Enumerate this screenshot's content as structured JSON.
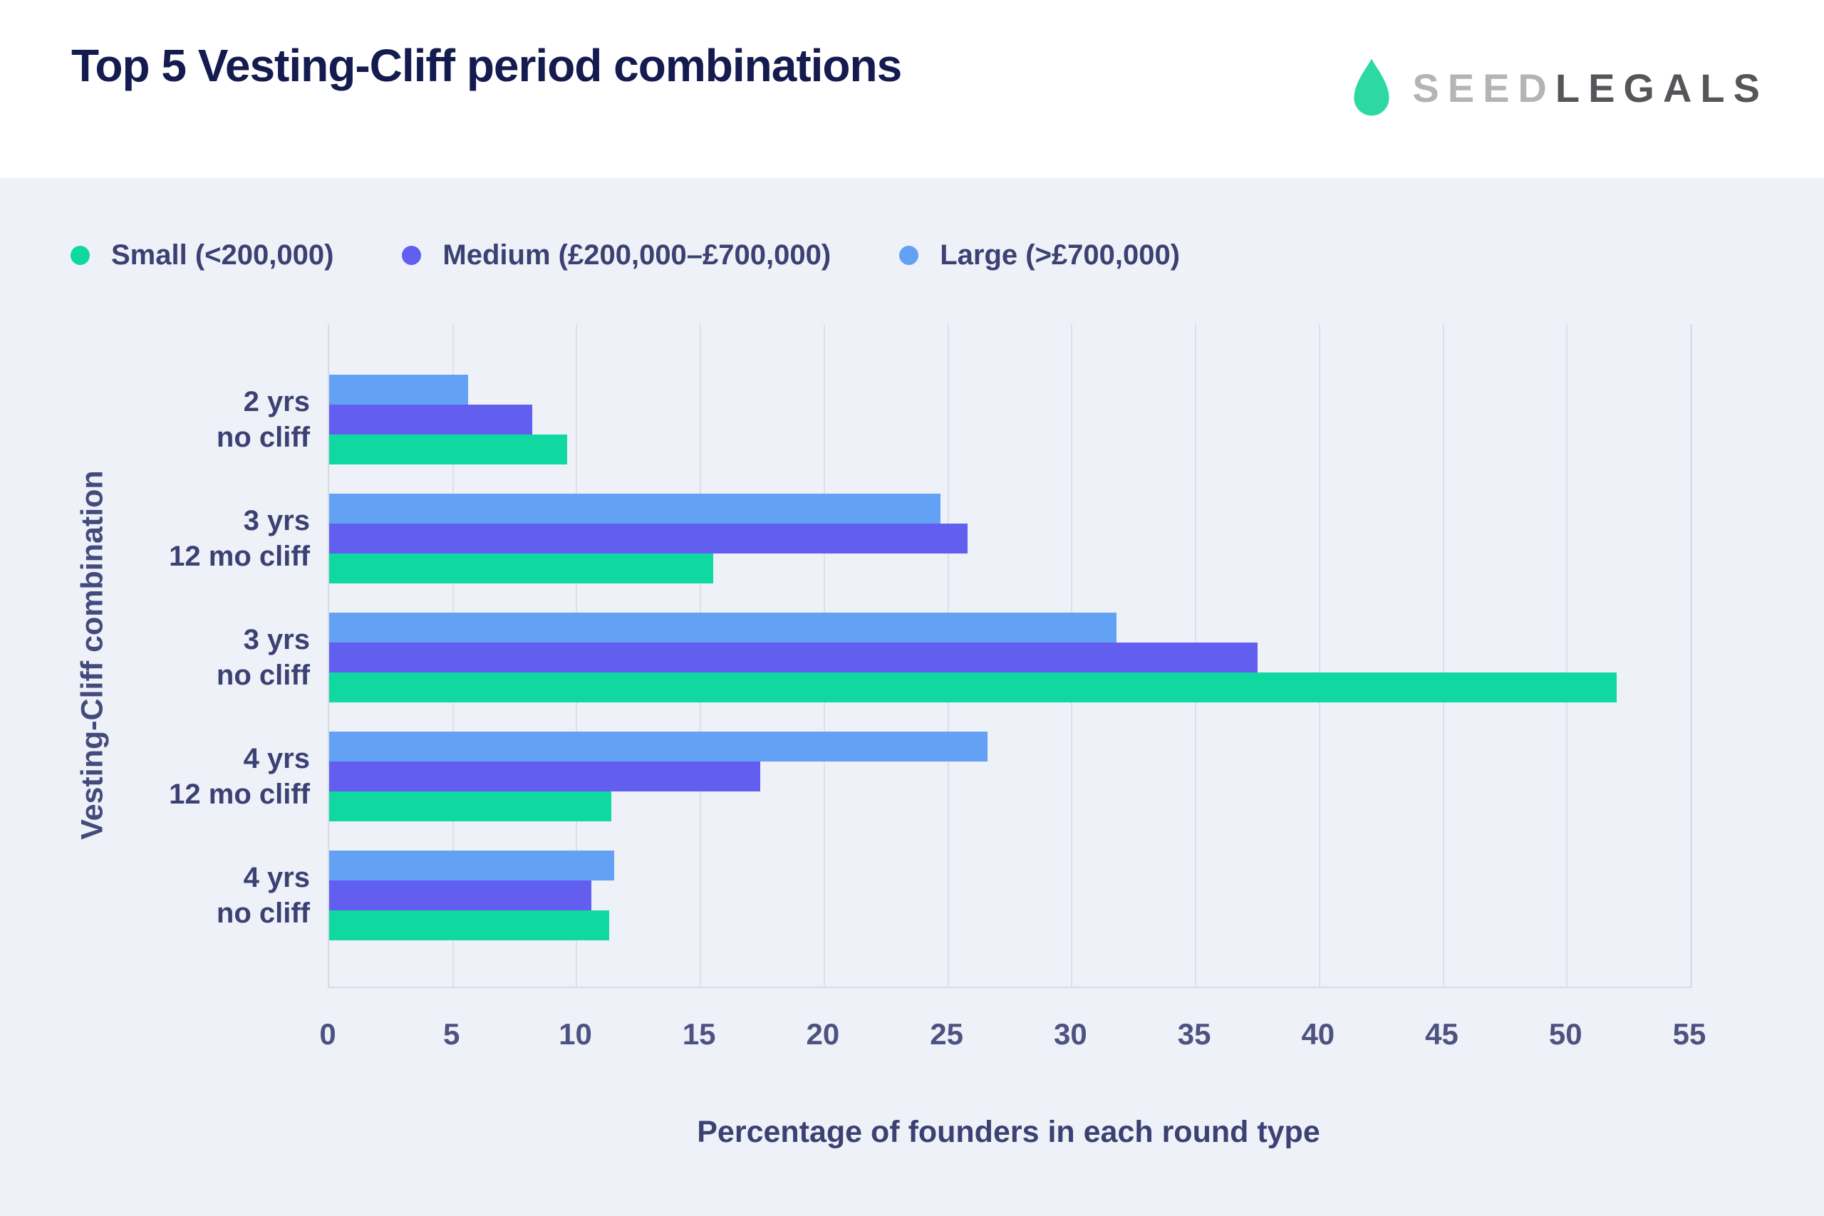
{
  "header": {
    "title": "Top 5 Vesting-Cliff period combinations",
    "logo": {
      "brand_first": "SEED",
      "brand_second": "LEGALS",
      "droplet_color": "#2dd9a2"
    }
  },
  "colors": {
    "panel_background": "#eef1f7",
    "header_background": "#ffffff",
    "title_text": "#131b4f",
    "label_text": "#3b4173",
    "tick_text": "#4d5280",
    "gridline": "#dde0e9",
    "small_green": "#0fd9a1",
    "medium_purple": "#615ef0",
    "large_blue": "#63a1f4"
  },
  "legend": [
    {
      "label": "Small (<200,000)",
      "color": "#0fd9a1"
    },
    {
      "label": "Medium (£200,000–£700,000)",
      "color": "#615ef0"
    },
    {
      "label": "Large (>£700,000)",
      "color": "#63a1f4"
    }
  ],
  "chart_data": {
    "type": "bar",
    "orientation": "horizontal",
    "title": "Top 5 Vesting-Cliff period combinations",
    "xlabel": "Percentage of founders in each round type",
    "ylabel": "Vesting-Cliff combination",
    "xlim": [
      0,
      55
    ],
    "xticks": [
      0,
      5,
      10,
      15,
      20,
      25,
      30,
      35,
      40,
      45,
      50,
      55
    ],
    "grid": true,
    "legend_position": "top-left",
    "categories": [
      [
        "2 yrs",
        "no cliff"
      ],
      [
        "3 yrs",
        "12 mo cliff"
      ],
      [
        "3 yrs",
        "no cliff"
      ],
      [
        "4 yrs",
        "12 mo cliff"
      ],
      [
        "4 yrs",
        "no cliff"
      ]
    ],
    "bar_order_top_to_bottom": [
      "Large (>£700,000)",
      "Medium (£200,000–£700,000)",
      "Small (<200,000)"
    ],
    "series": [
      {
        "name": "Small (<200,000)",
        "color": "#0fd9a1",
        "values": [
          9.6,
          15.5,
          52.0,
          11.4,
          11.3
        ]
      },
      {
        "name": "Medium (£200,000–£700,000)",
        "color": "#615ef0",
        "values": [
          8.2,
          25.8,
          37.5,
          17.4,
          10.6
        ]
      },
      {
        "name": "Large (>£700,000)",
        "color": "#63a1f4",
        "values": [
          5.6,
          24.7,
          31.8,
          26.6,
          11.5
        ]
      }
    ]
  }
}
